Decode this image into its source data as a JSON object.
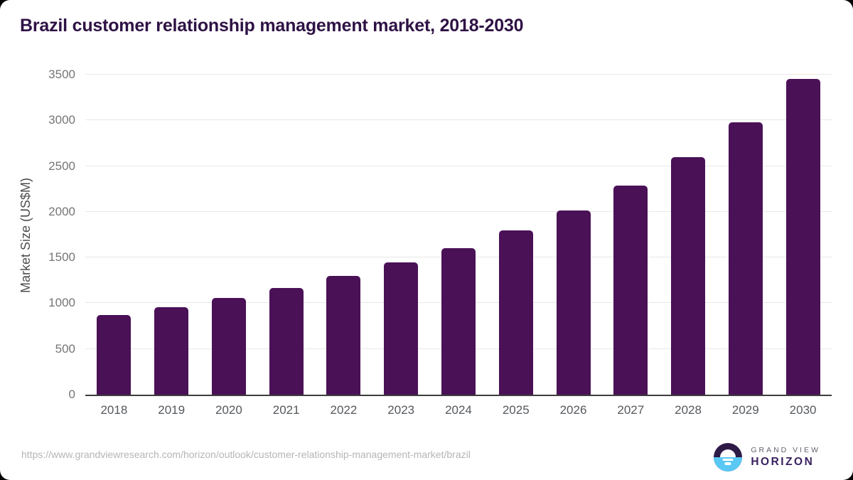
{
  "page": {
    "title": "Brazil customer relationship management market, 2018-2030",
    "source_url": "https://www.grandviewresearch.com/horizon/outlook/customer-relationship-management-market/brazil"
  },
  "logo": {
    "brand_top": "GRAND VIEW",
    "brand_bottom": "HORIZON"
  },
  "colors": {
    "bar": "#4a1157",
    "title": "#2e1245",
    "axis_text": "#757575",
    "x_axis_text": "#55585c",
    "gridline": "#e8e8e8",
    "axis_line": "#3d3d3d",
    "source_text": "#b5b5b5",
    "logo_purple": "#2e1a47",
    "logo_blue": "#5ac8f5"
  },
  "chart_data": {
    "type": "bar",
    "title": "Brazil customer relationship management market, 2018-2030",
    "categories": [
      "2018",
      "2019",
      "2020",
      "2021",
      "2022",
      "2023",
      "2024",
      "2025",
      "2026",
      "2027",
      "2028",
      "2029",
      "2030"
    ],
    "values": [
      870,
      960,
      1060,
      1170,
      1300,
      1445,
      1600,
      1795,
      2015,
      2285,
      2600,
      2980,
      3450
    ],
    "xlabel": "",
    "ylabel": "Market Size (US$M)",
    "ylim": [
      0,
      3500
    ],
    "yticks": [
      0,
      500,
      1000,
      1500,
      2000,
      2500,
      3000,
      3500
    ],
    "grid": true,
    "legend": false,
    "bar_color": "#4a1157"
  }
}
